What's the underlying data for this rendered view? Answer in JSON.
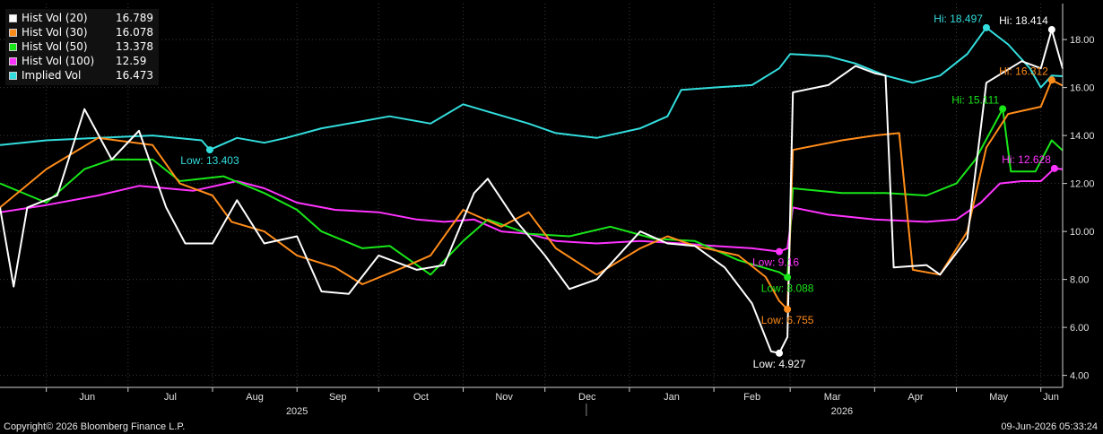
{
  "legend": [
    {
      "name": "Hist Vol (20)",
      "value": "16.789",
      "color": "#ffffff"
    },
    {
      "name": "Hist Vol (30)",
      "value": "16.078",
      "color": "#ff8c1a"
    },
    {
      "name": "Hist Vol (50)",
      "value": "13.378",
      "color": "#19e619"
    },
    {
      "name": "Hist Vol (100)",
      "value": "12.59",
      "color": "#ff33ff"
    },
    {
      "name": "Implied Vol",
      "value": "16.473",
      "color": "#33dddd"
    }
  ],
  "footer": {
    "copyright": "Copyright© 2026 Bloomberg Finance L.P.",
    "timestamp": "09-Jun-2026 05:33:24"
  },
  "chart_data": {
    "type": "line",
    "grid": true,
    "y_axis_side": "right",
    "ylim": [
      3.5,
      19.5
    ],
    "y_ticks": [
      "4.00",
      "6.00",
      "8.00",
      "10.00",
      "12.00",
      "14.00",
      "16.00",
      "18.00"
    ],
    "x_range": [
      "2025-05-15",
      "2026-06-09"
    ],
    "x_month_ticks": [
      {
        "label": "Jun",
        "date": "2025-06-01"
      },
      {
        "label": "Jul",
        "date": "2025-07-01"
      },
      {
        "label": "Aug",
        "date": "2025-08-01"
      },
      {
        "label": "Sep",
        "date": "2025-09-01"
      },
      {
        "label": "Oct",
        "date": "2025-10-01"
      },
      {
        "label": "Nov",
        "date": "2025-11-01"
      },
      {
        "label": "Dec",
        "date": "2025-12-01"
      },
      {
        "label": "Jan",
        "date": "2026-01-01"
      },
      {
        "label": "Feb",
        "date": "2026-02-01"
      },
      {
        "label": "Mar",
        "date": "2026-03-01"
      },
      {
        "label": "Apr",
        "date": "2026-04-01"
      },
      {
        "label": "May",
        "date": "2026-05-01"
      },
      {
        "label": "Jun",
        "date": "2026-06-01"
      }
    ],
    "x_year_labels": [
      {
        "label": "2025",
        "date": "2025-09-01"
      },
      {
        "label": "2026",
        "date": "2026-03-20"
      }
    ],
    "year_divider_date": "2026-01-01",
    "series": [
      {
        "name": "Implied Vol",
        "color": "#33dddd",
        "points": [
          [
            "2025-05-15",
            13.6
          ],
          [
            "2025-06-01",
            13.8
          ],
          [
            "2025-06-20",
            13.9
          ],
          [
            "2025-07-10",
            14.0
          ],
          [
            "2025-07-28",
            13.8
          ],
          [
            "2025-07-31",
            13.403
          ],
          [
            "2025-08-10",
            13.9
          ],
          [
            "2025-08-20",
            13.7
          ],
          [
            "2025-08-28",
            13.9
          ],
          [
            "2025-09-10",
            14.3
          ],
          [
            "2025-09-25",
            14.6
          ],
          [
            "2025-10-05",
            14.8
          ],
          [
            "2025-10-20",
            14.5
          ],
          [
            "2025-11-01",
            15.3
          ],
          [
            "2025-11-10",
            15.0
          ],
          [
            "2025-11-25",
            14.5
          ],
          [
            "2025-12-05",
            14.1
          ],
          [
            "2025-12-20",
            13.9
          ],
          [
            "2026-01-05",
            14.3
          ],
          [
            "2026-01-15",
            14.8
          ],
          [
            "2026-01-20",
            15.9
          ],
          [
            "2026-02-01",
            16.0
          ],
          [
            "2026-02-15",
            16.1
          ],
          [
            "2026-02-25",
            16.8
          ],
          [
            "2026-03-01",
            17.4
          ],
          [
            "2026-03-15",
            17.3
          ],
          [
            "2026-03-25",
            17.0
          ],
          [
            "2026-04-05",
            16.5
          ],
          [
            "2026-04-15",
            16.2
          ],
          [
            "2026-04-25",
            16.5
          ],
          [
            "2026-05-05",
            17.4
          ],
          [
            "2026-05-12",
            18.497
          ],
          [
            "2026-05-20",
            17.8
          ],
          [
            "2026-05-28",
            16.8
          ],
          [
            "2026-06-01",
            16.0
          ],
          [
            "2026-06-05",
            16.5
          ],
          [
            "2026-06-09",
            16.473
          ]
        ]
      },
      {
        "name": "Hist Vol (100)",
        "color": "#ff33ff",
        "points": [
          [
            "2025-05-15",
            10.8
          ],
          [
            "2025-06-01",
            11.1
          ],
          [
            "2025-06-20",
            11.5
          ],
          [
            "2025-07-05",
            11.9
          ],
          [
            "2025-07-25",
            11.7
          ],
          [
            "2025-08-10",
            12.1
          ],
          [
            "2025-08-20",
            11.8
          ],
          [
            "2025-09-01",
            11.2
          ],
          [
            "2025-09-15",
            10.9
          ],
          [
            "2025-10-01",
            10.8
          ],
          [
            "2025-10-15",
            10.5
          ],
          [
            "2025-10-25",
            10.4
          ],
          [
            "2025-11-05",
            10.5
          ],
          [
            "2025-11-15",
            10.0
          ],
          [
            "2025-11-25",
            9.9
          ],
          [
            "2025-12-05",
            9.6
          ],
          [
            "2025-12-20",
            9.5
          ],
          [
            "2026-01-05",
            9.6
          ],
          [
            "2026-01-20",
            9.5
          ],
          [
            "2026-02-01",
            9.4
          ],
          [
            "2026-02-15",
            9.3
          ],
          [
            "2026-02-25",
            9.16
          ],
          [
            "2026-02-28",
            9.3
          ],
          [
            "2026-03-02",
            11.0
          ],
          [
            "2026-03-15",
            10.7
          ],
          [
            "2026-04-01",
            10.5
          ],
          [
            "2026-04-20",
            10.4
          ],
          [
            "2026-05-01",
            10.5
          ],
          [
            "2026-05-10",
            11.2
          ],
          [
            "2026-05-17",
            12.0
          ],
          [
            "2026-05-25",
            12.1
          ],
          [
            "2026-06-01",
            12.1
          ],
          [
            "2026-06-06",
            12.628
          ],
          [
            "2026-06-09",
            12.59
          ]
        ]
      },
      {
        "name": "Hist Vol (50)",
        "color": "#19e619",
        "points": [
          [
            "2025-05-15",
            12.0
          ],
          [
            "2025-06-01",
            11.2
          ],
          [
            "2025-06-15",
            12.6
          ],
          [
            "2025-06-25",
            13.0
          ],
          [
            "2025-07-10",
            13.0
          ],
          [
            "2025-07-20",
            12.1
          ],
          [
            "2025-08-05",
            12.3
          ],
          [
            "2025-08-20",
            11.6
          ],
          [
            "2025-09-01",
            10.9
          ],
          [
            "2025-09-10",
            10.0
          ],
          [
            "2025-09-25",
            9.3
          ],
          [
            "2025-10-05",
            9.4
          ],
          [
            "2025-10-20",
            8.2
          ],
          [
            "2025-11-01",
            9.6
          ],
          [
            "2025-11-10",
            10.5
          ],
          [
            "2025-11-25",
            9.9
          ],
          [
            "2025-12-10",
            9.8
          ],
          [
            "2025-12-25",
            10.2
          ],
          [
            "2026-01-10",
            9.7
          ],
          [
            "2026-01-25",
            9.6
          ],
          [
            "2026-02-10",
            8.8
          ],
          [
            "2026-02-25",
            8.3
          ],
          [
            "2026-02-28",
            8.088
          ],
          [
            "2026-03-02",
            11.8
          ],
          [
            "2026-03-20",
            11.6
          ],
          [
            "2026-04-05",
            11.6
          ],
          [
            "2026-04-20",
            11.5
          ],
          [
            "2026-05-01",
            12.0
          ],
          [
            "2026-05-08",
            13.0
          ],
          [
            "2026-05-18",
            15.111
          ],
          [
            "2026-05-21",
            12.5
          ],
          [
            "2026-05-30",
            12.5
          ],
          [
            "2026-06-05",
            13.8
          ],
          [
            "2026-06-09",
            13.378
          ]
        ]
      },
      {
        "name": "Hist Vol (30)",
        "color": "#ff8c1a",
        "points": [
          [
            "2025-05-15",
            11.0
          ],
          [
            "2025-06-01",
            12.6
          ],
          [
            "2025-06-20",
            13.9
          ],
          [
            "2025-07-10",
            13.6
          ],
          [
            "2025-07-20",
            12.0
          ],
          [
            "2025-08-01",
            11.5
          ],
          [
            "2025-08-08",
            10.4
          ],
          [
            "2025-08-20",
            10.0
          ],
          [
            "2025-09-01",
            9.0
          ],
          [
            "2025-09-15",
            8.5
          ],
          [
            "2025-09-25",
            7.8
          ],
          [
            "2025-10-10",
            8.5
          ],
          [
            "2025-10-20",
            9.0
          ],
          [
            "2025-11-01",
            10.9
          ],
          [
            "2025-11-15",
            10.2
          ],
          [
            "2025-11-25",
            10.8
          ],
          [
            "2025-12-05",
            9.3
          ],
          [
            "2025-12-20",
            8.2
          ],
          [
            "2026-01-05",
            9.3
          ],
          [
            "2026-01-15",
            9.8
          ],
          [
            "2026-01-25",
            9.4
          ],
          [
            "2026-02-10",
            9.0
          ],
          [
            "2026-02-20",
            8.1
          ],
          [
            "2026-02-25",
            7.1
          ],
          [
            "2026-02-28",
            6.755
          ],
          [
            "2026-03-02",
            13.4
          ],
          [
            "2026-03-20",
            13.8
          ],
          [
            "2026-04-01",
            14.0
          ],
          [
            "2026-04-10",
            14.1
          ],
          [
            "2026-04-15",
            8.4
          ],
          [
            "2026-04-25",
            8.2
          ],
          [
            "2026-05-05",
            10.0
          ],
          [
            "2026-05-12",
            13.5
          ],
          [
            "2026-05-20",
            14.9
          ],
          [
            "2026-06-01",
            15.2
          ],
          [
            "2026-06-05",
            16.312
          ],
          [
            "2026-06-09",
            16.078
          ]
        ]
      },
      {
        "name": "Hist Vol (20)",
        "color": "#ffffff",
        "points": [
          [
            "2025-05-15",
            11.0
          ],
          [
            "2025-05-20",
            7.7
          ],
          [
            "2025-05-25",
            11.0
          ],
          [
            "2025-06-05",
            11.5
          ],
          [
            "2025-06-15",
            15.1
          ],
          [
            "2025-06-25",
            13.0
          ],
          [
            "2025-07-05",
            14.2
          ],
          [
            "2025-07-15",
            11.0
          ],
          [
            "2025-07-22",
            9.5
          ],
          [
            "2025-08-01",
            9.5
          ],
          [
            "2025-08-10",
            11.3
          ],
          [
            "2025-08-20",
            9.5
          ],
          [
            "2025-09-01",
            9.8
          ],
          [
            "2025-09-10",
            7.5
          ],
          [
            "2025-09-20",
            7.4
          ],
          [
            "2025-10-01",
            9.0
          ],
          [
            "2025-10-15",
            8.4
          ],
          [
            "2025-10-25",
            8.6
          ],
          [
            "2025-11-05",
            11.6
          ],
          [
            "2025-11-10",
            12.2
          ],
          [
            "2025-11-20",
            10.5
          ],
          [
            "2025-12-01",
            9.0
          ],
          [
            "2025-12-10",
            7.6
          ],
          [
            "2025-12-20",
            8.0
          ],
          [
            "2026-01-05",
            10.0
          ],
          [
            "2026-01-15",
            9.5
          ],
          [
            "2026-01-25",
            9.4
          ],
          [
            "2026-02-05",
            8.5
          ],
          [
            "2026-02-15",
            7.0
          ],
          [
            "2026-02-22",
            5.0
          ],
          [
            "2026-02-25",
            4.927
          ],
          [
            "2026-02-28",
            5.6
          ],
          [
            "2026-03-02",
            15.8
          ],
          [
            "2026-03-15",
            16.1
          ],
          [
            "2026-03-25",
            16.9
          ],
          [
            "2026-04-01",
            16.6
          ],
          [
            "2026-04-05",
            16.5
          ],
          [
            "2026-04-08",
            8.5
          ],
          [
            "2026-04-20",
            8.6
          ],
          [
            "2026-04-25",
            8.2
          ],
          [
            "2026-05-05",
            9.7
          ],
          [
            "2026-05-12",
            16.2
          ],
          [
            "2026-05-25",
            17.1
          ],
          [
            "2026-06-01",
            16.8
          ],
          [
            "2026-06-05",
            18.414
          ],
          [
            "2026-06-09",
            16.789
          ]
        ]
      }
    ],
    "annotations": [
      {
        "text": "Low: 13.403",
        "series": "Implied Vol",
        "date": "2025-07-31",
        "value": 13.403,
        "color": "#33dddd",
        "pos": "below"
      },
      {
        "text": "Hi: 18.497",
        "series": "Implied Vol",
        "date": "2026-05-12",
        "value": 18.497,
        "color": "#33dddd",
        "pos": "left"
      },
      {
        "text": "Hi: 18.414",
        "series": "Hist Vol (20)",
        "date": "2026-06-05",
        "value": 18.414,
        "color": "#ffffff",
        "pos": "left"
      },
      {
        "text": "Hi: 16.312",
        "series": "Hist Vol (30)",
        "date": "2026-06-05",
        "value": 16.312,
        "color": "#ff8c1a",
        "pos": "left"
      },
      {
        "text": "Hi: 15.111",
        "series": "Hist Vol (50)",
        "date": "2026-05-18",
        "value": 15.111,
        "color": "#19e619",
        "pos": "left"
      },
      {
        "text": "Hi: 12.628",
        "series": "Hist Vol (100)",
        "date": "2026-06-06",
        "value": 12.628,
        "color": "#ff33ff",
        "pos": "left"
      },
      {
        "text": "Low: 9.16",
        "series": "Hist Vol (100)",
        "date": "2026-02-25",
        "value": 9.16,
        "color": "#ff33ff",
        "pos": "belowright"
      },
      {
        "text": "Low: 8.088",
        "series": "Hist Vol (50)",
        "date": "2026-02-28",
        "value": 8.088,
        "color": "#19e619",
        "pos": "below"
      },
      {
        "text": "Low: 6.755",
        "series": "Hist Vol (30)",
        "date": "2026-02-28",
        "value": 6.755,
        "color": "#ff8c1a",
        "pos": "below"
      },
      {
        "text": "Low: 4.927",
        "series": "Hist Vol (20)",
        "date": "2026-02-25",
        "value": 4.927,
        "color": "#ffffff",
        "pos": "below"
      }
    ]
  }
}
